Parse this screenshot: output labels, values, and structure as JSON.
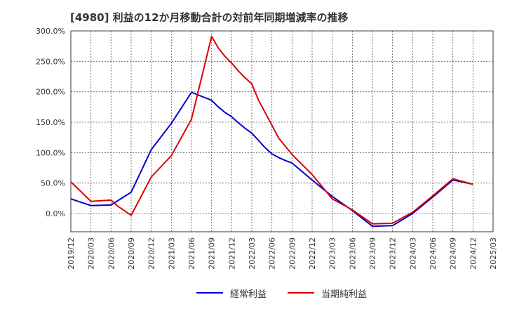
{
  "chart_data": {
    "type": "line",
    "title": "[4980]  利益の12か月移動合計の対前年同期増減率の推移",
    "x": [
      "2019/12",
      "2020/03",
      "2020/06",
      "2020/09",
      "2020/12",
      "2021/03",
      "2021/06",
      "2021/09",
      "2021/12",
      "2022/03",
      "2022/06",
      "2022/09",
      "2022/12",
      "2023/03",
      "2023/06",
      "2023/09",
      "2023/12",
      "2024/03",
      "2024/06",
      "2024/09",
      "2024/12",
      "2025/03"
    ],
    "ylim": [
      -30,
      300
    ],
    "yticks": [
      "300.0%",
      "250.0%",
      "200.0%",
      "150.0%",
      "100.0%",
      "50.0%",
      "0.0%"
    ],
    "grid": true,
    "legend_position": "bottom",
    "series": [
      {
        "name": "経常利益",
        "color": "#0000cc",
        "values": [
          [
            "2019/12",
            24
          ],
          [
            "2020/03",
            13
          ],
          [
            "2020/06",
            14
          ],
          [
            "2020/09",
            35
          ],
          [
            "2020/12",
            105
          ],
          [
            "2021/03",
            148
          ],
          [
            "2021/06",
            199
          ],
          [
            "2021/09",
            186
          ],
          [
            "2021/10",
            175
          ],
          [
            "2021/11",
            166
          ],
          [
            "2021/12",
            159
          ],
          [
            "2022/01",
            149
          ],
          [
            "2022/02",
            140
          ],
          [
            "2022/03",
            132
          ],
          [
            "2022/04",
            120
          ],
          [
            "2022/05",
            108
          ],
          [
            "2022/06",
            98
          ],
          [
            "2022/07",
            92
          ],
          [
            "2022/08",
            87
          ],
          [
            "2022/09",
            83
          ],
          [
            "2022/12",
            55
          ],
          [
            "2023/03",
            28
          ],
          [
            "2023/06",
            5
          ],
          [
            "2023/09",
            -21
          ],
          [
            "2023/12",
            -20
          ],
          [
            "2024/03",
            0
          ],
          [
            "2024/06",
            27
          ],
          [
            "2024/09",
            55
          ],
          [
            "2024/12",
            48
          ]
        ]
      },
      {
        "name": "当期純利益",
        "color": "#dd0000",
        "values": [
          [
            "2019/12",
            52
          ],
          [
            "2020/03",
            20
          ],
          [
            "2020/06",
            22
          ],
          [
            "2020/07",
            12
          ],
          [
            "2020/09",
            -3
          ],
          [
            "2020/12",
            60
          ],
          [
            "2021/03",
            95
          ],
          [
            "2021/06",
            155
          ],
          [
            "2021/09",
            291
          ],
          [
            "2021/10",
            272
          ],
          [
            "2021/11",
            258
          ],
          [
            "2021/12",
            247
          ],
          [
            "2022/01",
            234
          ],
          [
            "2022/02",
            223
          ],
          [
            "2022/03",
            213
          ],
          [
            "2022/04",
            186
          ],
          [
            "2022/06",
            145
          ],
          [
            "2022/07",
            124
          ],
          [
            "2022/09",
            97
          ],
          [
            "2022/12",
            64
          ],
          [
            "2023/03",
            24
          ],
          [
            "2023/06",
            6
          ],
          [
            "2023/09",
            -17
          ],
          [
            "2023/12",
            -16
          ],
          [
            "2024/03",
            2
          ],
          [
            "2024/06",
            29
          ],
          [
            "2024/09",
            57
          ],
          [
            "2024/12",
            48
          ]
        ]
      }
    ]
  }
}
